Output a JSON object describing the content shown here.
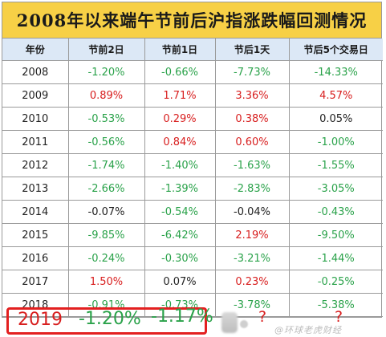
{
  "title": "2008年以来端午节前后沪指涨跌幅回测情况",
  "table": {
    "headers": [
      "年份",
      "节前2日",
      "节前1日",
      "节后1天",
      "节后5个交易日"
    ],
    "rows": [
      {
        "year": "2008",
        "cells": [
          {
            "v": "-1.20%",
            "c": "green"
          },
          {
            "v": "-0.66%",
            "c": "green"
          },
          {
            "v": "-7.73%",
            "c": "green"
          },
          {
            "v": "-14.33%",
            "c": "green"
          }
        ]
      },
      {
        "year": "2009",
        "cells": [
          {
            "v": "0.89%",
            "c": "red"
          },
          {
            "v": "1.71%",
            "c": "red"
          },
          {
            "v": "3.36%",
            "c": "red"
          },
          {
            "v": "4.57%",
            "c": "red"
          }
        ]
      },
      {
        "year": "2010",
        "cells": [
          {
            "v": "-0.53%",
            "c": "green"
          },
          {
            "v": "0.29%",
            "c": "red"
          },
          {
            "v": "0.38%",
            "c": "red"
          },
          {
            "v": "0.05%",
            "c": "black"
          }
        ]
      },
      {
        "year": "2011",
        "cells": [
          {
            "v": "-0.56%",
            "c": "green"
          },
          {
            "v": "0.84%",
            "c": "red"
          },
          {
            "v": "0.60%",
            "c": "red"
          },
          {
            "v": "-1.00%",
            "c": "green"
          }
        ]
      },
      {
        "year": "2012",
        "cells": [
          {
            "v": "-1.74%",
            "c": "green"
          },
          {
            "v": "-1.40%",
            "c": "green"
          },
          {
            "v": "-1.63%",
            "c": "green"
          },
          {
            "v": "-1.55%",
            "c": "green"
          }
        ]
      },
      {
        "year": "2013",
        "cells": [
          {
            "v": "-2.66%",
            "c": "green"
          },
          {
            "v": "-1.39%",
            "c": "green"
          },
          {
            "v": "-2.83%",
            "c": "green"
          },
          {
            "v": "-3.05%",
            "c": "green"
          }
        ]
      },
      {
        "year": "2014",
        "cells": [
          {
            "v": "-0.07%",
            "c": "black"
          },
          {
            "v": "-0.54%",
            "c": "green"
          },
          {
            "v": "-0.04%",
            "c": "black"
          },
          {
            "v": "-0.43%",
            "c": "green"
          }
        ]
      },
      {
        "year": "2015",
        "cells": [
          {
            "v": "-9.85%",
            "c": "green"
          },
          {
            "v": "-6.42%",
            "c": "green"
          },
          {
            "v": "2.19%",
            "c": "red"
          },
          {
            "v": "-9.50%",
            "c": "green"
          }
        ]
      },
      {
        "year": "2016",
        "cells": [
          {
            "v": "-0.24%",
            "c": "green"
          },
          {
            "v": "-0.30%",
            "c": "green"
          },
          {
            "v": "-3.21%",
            "c": "green"
          },
          {
            "v": "-1.44%",
            "c": "green"
          }
        ]
      },
      {
        "year": "2017",
        "cells": [
          {
            "v": "1.50%",
            "c": "red"
          },
          {
            "v": "0.07%",
            "c": "black"
          },
          {
            "v": "0.23%",
            "c": "red"
          },
          {
            "v": "-0.25%",
            "c": "green"
          }
        ]
      },
      {
        "year": "2018",
        "cells": [
          {
            "v": "-0.91%",
            "c": "green"
          },
          {
            "v": "-0.73%",
            "c": "green"
          },
          {
            "v": "-3.78%",
            "c": "green"
          },
          {
            "v": "-5.38%",
            "c": "green"
          }
        ]
      }
    ]
  },
  "highlight": {
    "year": "2019",
    "v1": "-1.20%",
    "v2": "-1.17%",
    "q1": "?",
    "q2": "?"
  },
  "watermark": "@环球老虎财经",
  "colors": {
    "title_bg": "#f7d046",
    "header_bg": "#dce8f6",
    "up": "#d81e1e",
    "down": "#2aa24a",
    "box": "#e32020"
  }
}
